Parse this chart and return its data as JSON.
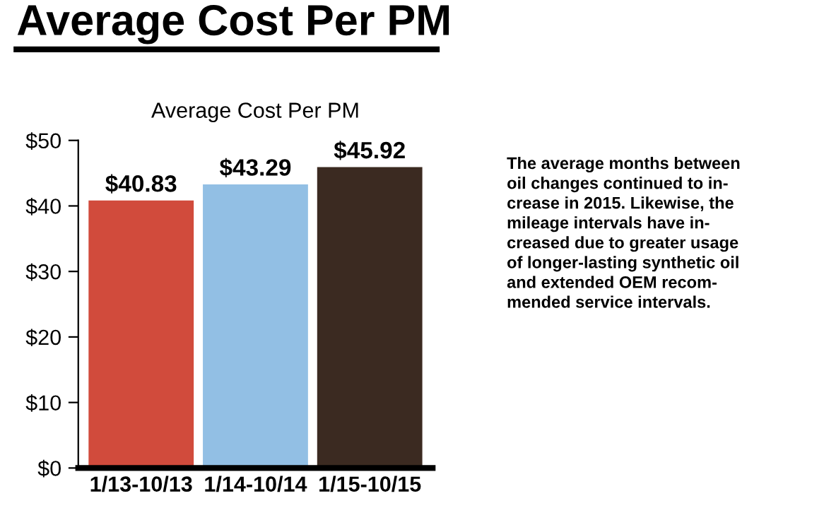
{
  "chart_data": {
    "type": "bar",
    "title": "Average Cost Per PM",
    "subtitle": "Average Cost Per PM",
    "categories": [
      "1/13-10/13",
      "1/14-10/14",
      "1/15-10/15"
    ],
    "values": [
      40.83,
      43.29,
      45.92
    ],
    "colors": [
      "#d14b3c",
      "#92bfe4",
      "#3b2a21"
    ],
    "value_labels": [
      "$40.83",
      "$43.29",
      "$45.92"
    ],
    "ylim": [
      0,
      50
    ],
    "yticks": [
      {
        "value": 0,
        "label": "$0"
      },
      {
        "value": 10,
        "label": "$10"
      },
      {
        "value": 20,
        "label": "$20"
      },
      {
        "value": 30,
        "label": "$30"
      },
      {
        "value": 40,
        "label": "$40"
      },
      {
        "value": 50,
        "label": "$50"
      }
    ],
    "grid": false,
    "annotations": [
      "The average months between\noil changes continued to in-\ncrease in 2015. Likewise, the\nmileage intervals have in-\ncreased due to greater usage\nof longer-lasting synthetic oil\nand extended OEM recom-\nmended service intervals."
    ]
  }
}
